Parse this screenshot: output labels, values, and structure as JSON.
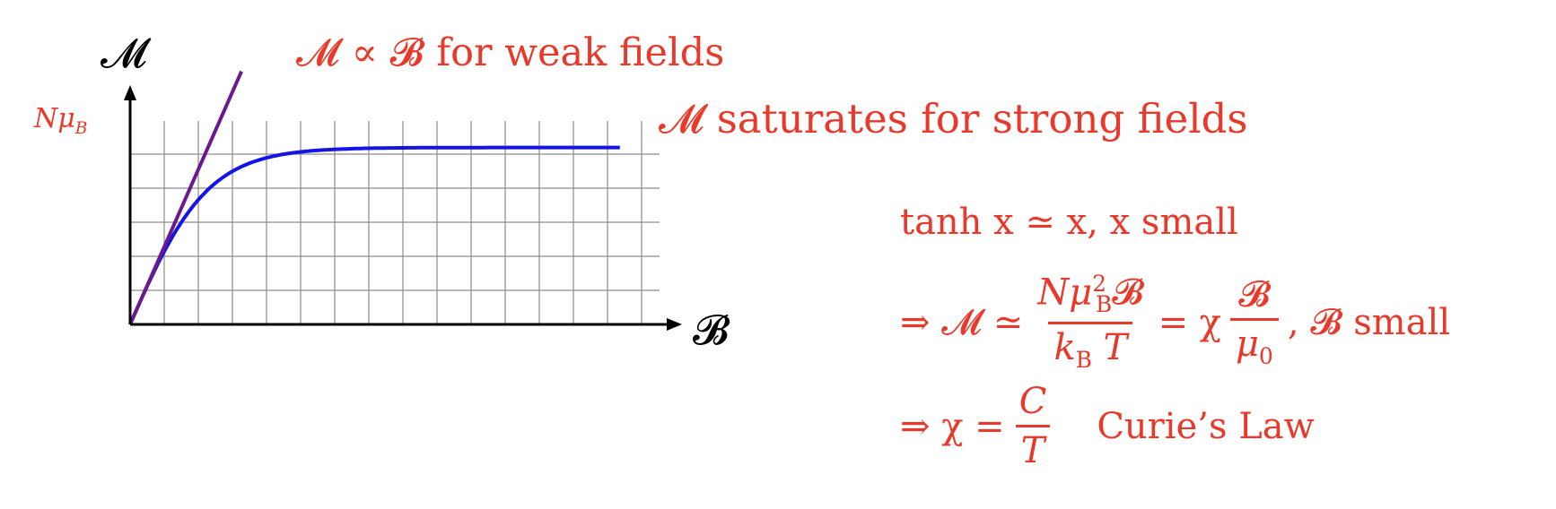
{
  "labels": {
    "y_axis": "𝓜",
    "x_axis": "𝓑",
    "saturation_tick": "Nμ",
    "saturation_tick_sub": "B",
    "weak_annotation": "𝓜 ∝ 𝓑 for weak fields",
    "strong_annotation": "𝓜 saturates for strong fields"
  },
  "equations": {
    "line1": "tanh x ≃ x,  x small",
    "line2_prefix": "⇒ 𝓜 ≃",
    "line2_num": "Nμ",
    "line2_num_sub": "B",
    "line2_num_sup": "2",
    "line2_num_tail": "𝓑",
    "line2_den": "k",
    "line2_den_sub": "B",
    "line2_den_tail": "T",
    "line2_mid": "= χ",
    "line2_frac2_num": "𝓑",
    "line2_frac2_den": "μ",
    "line2_frac2_den_sub": "0",
    "line2_suffix": ",  𝓑 small",
    "line3_prefix": "⇒ χ =",
    "line3_num": "C",
    "line3_den": "T",
    "line3_label": "Curie’s Law"
  },
  "colors": {
    "text_red": "#e8392a",
    "curve_blue": "#1414e6",
    "line_purple": "#6a1a8a",
    "grid": "#8c8c8c",
    "axis": "#000000"
  },
  "chart_data": {
    "type": "line",
    "series": [
      {
        "function": "tanh(B)",
        "color": "#1414e6"
      },
      {
        "function": "B",
        "color": "#6a1a8a"
      }
    ],
    "xlim": [
      0,
      6.8
    ],
    "ylim": [
      0,
      1.15
    ],
    "grid": true
  }
}
